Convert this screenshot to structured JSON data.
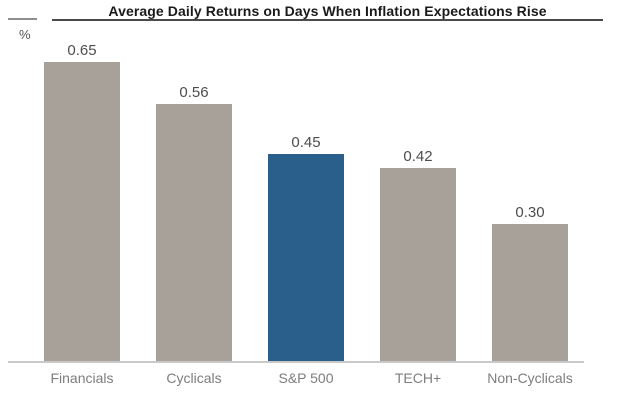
{
  "chart_data": {
    "type": "bar",
    "title": "Average Daily Returns on Days When Inflation Expectations Rise",
    "unit": "%",
    "xlabel": "",
    "ylabel": "%",
    "categories": [
      "Financials",
      "Cyclicals",
      "S&P 500",
      "TECH+",
      "Non-Cyclicals"
    ],
    "values": [
      0.65,
      0.56,
      0.45,
      0.42,
      0.3
    ],
    "value_labels": [
      "0.65",
      "0.56",
      "0.45",
      "0.42",
      "0.30"
    ],
    "ylim": [
      0,
      0.79
    ],
    "grid": false,
    "legend": "none",
    "axis_ticks_visible": false,
    "default_bar_color": "#a8a19a",
    "bar_colors": [
      "#a8a19a",
      "#a8a19a",
      "#2a5f8c",
      "#a8a19a",
      "#a8a19a"
    ],
    "highlight": {
      "index": 2,
      "category": "S&P 500",
      "color": "#2a5f8c"
    }
  },
  "colors": {
    "background": "#ffffff",
    "title_text": "#1a1a1a",
    "title_underline": "#4a4a4a",
    "tick_dash": "#8f8f8f",
    "unit_label": "#555555",
    "value_label": "#4d4d4d",
    "category_label": "#7d7d7d",
    "axis_line": "#c9c9c9"
  }
}
